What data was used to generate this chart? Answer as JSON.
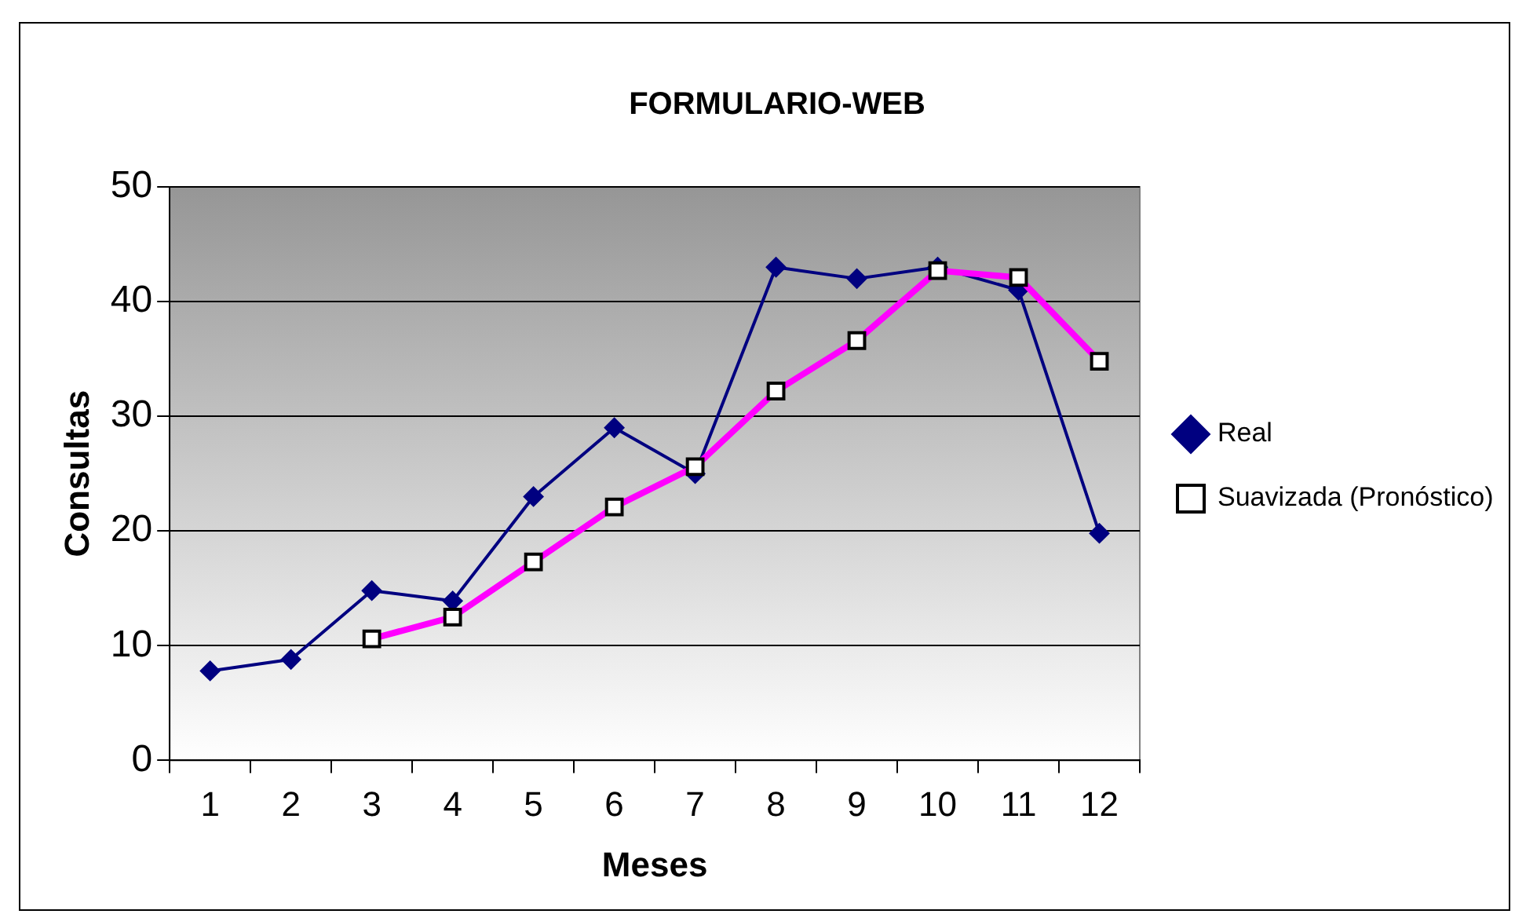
{
  "chart_data": {
    "type": "line",
    "title": "FORMULARIO-WEB",
    "xlabel": "Meses",
    "ylabel": "Consultas",
    "x": [
      1,
      2,
      3,
      4,
      5,
      6,
      7,
      8,
      9,
      10,
      11,
      12
    ],
    "series": [
      {
        "name": "Real",
        "color": "#000080",
        "marker": "diamond",
        "values": [
          7.8,
          8.8,
          14.8,
          13.9,
          23,
          29,
          25,
          43,
          42,
          43,
          41,
          19.8
        ]
      },
      {
        "name": "Suavizada (Pronóstico)",
        "color": "#ff00ff",
        "marker": "square",
        "values": [
          null,
          null,
          10.6,
          12.5,
          17.3,
          22.1,
          25.6,
          32.2,
          36.6,
          42.7,
          42.1,
          34.8
        ]
      }
    ],
    "xlim": [
      0.5,
      12.5
    ],
    "xticks": [
      {
        "value": 0.5,
        "label": null
      },
      1,
      {
        "value": 1.5,
        "label": null
      },
      2,
      {
        "value": 2.5,
        "label": null
      },
      3,
      {
        "value": 3.5,
        "label": null
      },
      4,
      {
        "value": 4.5,
        "label": null
      },
      5,
      {
        "value": 5.5,
        "label": null
      },
      6,
      {
        "value": 6.5,
        "label": null
      },
      7,
      {
        "value": 7.5,
        "label": null
      },
      8,
      {
        "value": 8.5,
        "label": null
      },
      9,
      {
        "value": 9.5,
        "label": null
      },
      10,
      {
        "value": 10.5,
        "label": null
      },
      11,
      {
        "value": 11.5,
        "label": null
      },
      12,
      {
        "value": 12.5,
        "label": null
      }
    ],
    "ylim": [
      0,
      50
    ],
    "yticks": [
      0,
      10,
      20,
      30,
      40,
      50
    ],
    "grid": "y",
    "legend": "right"
  }
}
